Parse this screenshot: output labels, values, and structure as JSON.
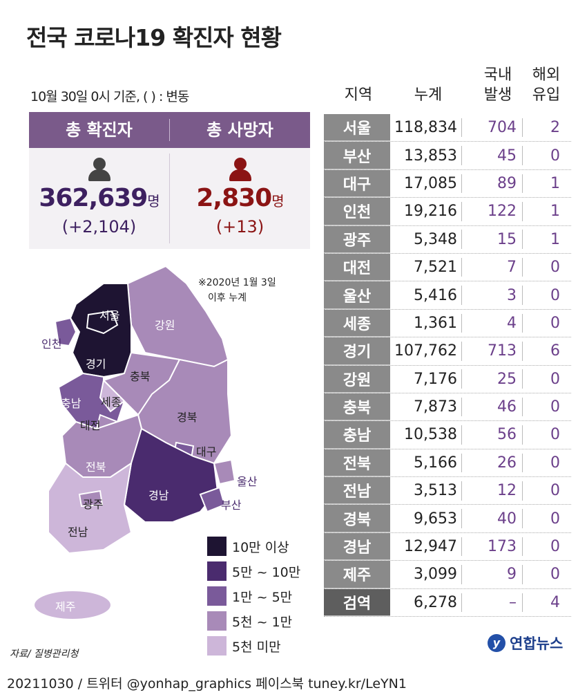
{
  "title": "전국 코로나19 확진자 현황",
  "subtitle": "10월 30일 0시 기준, ( ) : 변동",
  "summary": {
    "confirmed_label": "총 확진자",
    "deaths_label": "총 사망자",
    "confirmed_value": "362,639",
    "confirmed_unit": "명",
    "confirmed_change": "(+2,104)",
    "deaths_value": "2,830",
    "deaths_unit": "명",
    "deaths_change": "(+13)",
    "confirmed_color": "#3d2060",
    "deaths_color": "#8b1414"
  },
  "note": [
    "※2020년 1월 3일",
    "이후 누계"
  ],
  "map_labels": [
    "서울",
    "인천",
    "경기",
    "강원",
    "충북",
    "충남",
    "세종",
    "대전",
    "경북",
    "대구",
    "전북",
    "울산",
    "경남",
    "부산",
    "광주",
    "전남",
    "제주"
  ],
  "legend": [
    {
      "label": "10만 이상",
      "color": "#1e1432"
    },
    {
      "label": "5만 ~ 10만",
      "color": "#4a2b6e"
    },
    {
      "label": "1만 ~ 5만",
      "color": "#7a5a9a"
    },
    {
      "label": "5천 ~ 1만",
      "color": "#a88ab8"
    },
    {
      "label": "5천 미만",
      "color": "#cdb6d9"
    }
  ],
  "table": {
    "headers": {
      "region": "지역",
      "total": "누계",
      "domestic_1": "국내",
      "domestic_2": "발생",
      "imported_1": "해외",
      "imported_2": "유입"
    },
    "rows": [
      {
        "region": "서울",
        "total": "118,834",
        "domestic": "704",
        "imported": "2"
      },
      {
        "region": "부산",
        "total": "13,853",
        "domestic": "45",
        "imported": "0"
      },
      {
        "region": "대구",
        "total": "17,085",
        "domestic": "89",
        "imported": "1"
      },
      {
        "region": "인천",
        "total": "19,216",
        "domestic": "122",
        "imported": "1"
      },
      {
        "region": "광주",
        "total": "5,348",
        "domestic": "15",
        "imported": "1"
      },
      {
        "region": "대전",
        "total": "7,521",
        "domestic": "7",
        "imported": "0"
      },
      {
        "region": "울산",
        "total": "5,416",
        "domestic": "3",
        "imported": "0"
      },
      {
        "region": "세종",
        "total": "1,361",
        "domestic": "4",
        "imported": "0"
      },
      {
        "region": "경기",
        "total": "107,762",
        "domestic": "713",
        "imported": "6"
      },
      {
        "region": "강원",
        "total": "7,176",
        "domestic": "25",
        "imported": "0"
      },
      {
        "region": "충북",
        "total": "7,873",
        "domestic": "46",
        "imported": "0"
      },
      {
        "region": "충남",
        "total": "10,538",
        "domestic": "56",
        "imported": "0"
      },
      {
        "region": "전북",
        "total": "5,166",
        "domestic": "26",
        "imported": "0"
      },
      {
        "region": "전남",
        "total": "3,513",
        "domestic": "12",
        "imported": "0"
      },
      {
        "region": "경북",
        "total": "9,653",
        "domestic": "40",
        "imported": "0"
      },
      {
        "region": "경남",
        "total": "12,947",
        "domestic": "173",
        "imported": "0"
      },
      {
        "region": "제주",
        "total": "3,099",
        "domestic": "9",
        "imported": "0"
      },
      {
        "region": "검역",
        "total": "6,278",
        "domestic": "–",
        "imported": "4"
      }
    ]
  },
  "source": "자료/ 질병관리청",
  "logo": "연합뉴스",
  "footer": "20211030 / 트위터 @yonhap_graphics  페이스북 tuney.kr/LeYN1"
}
